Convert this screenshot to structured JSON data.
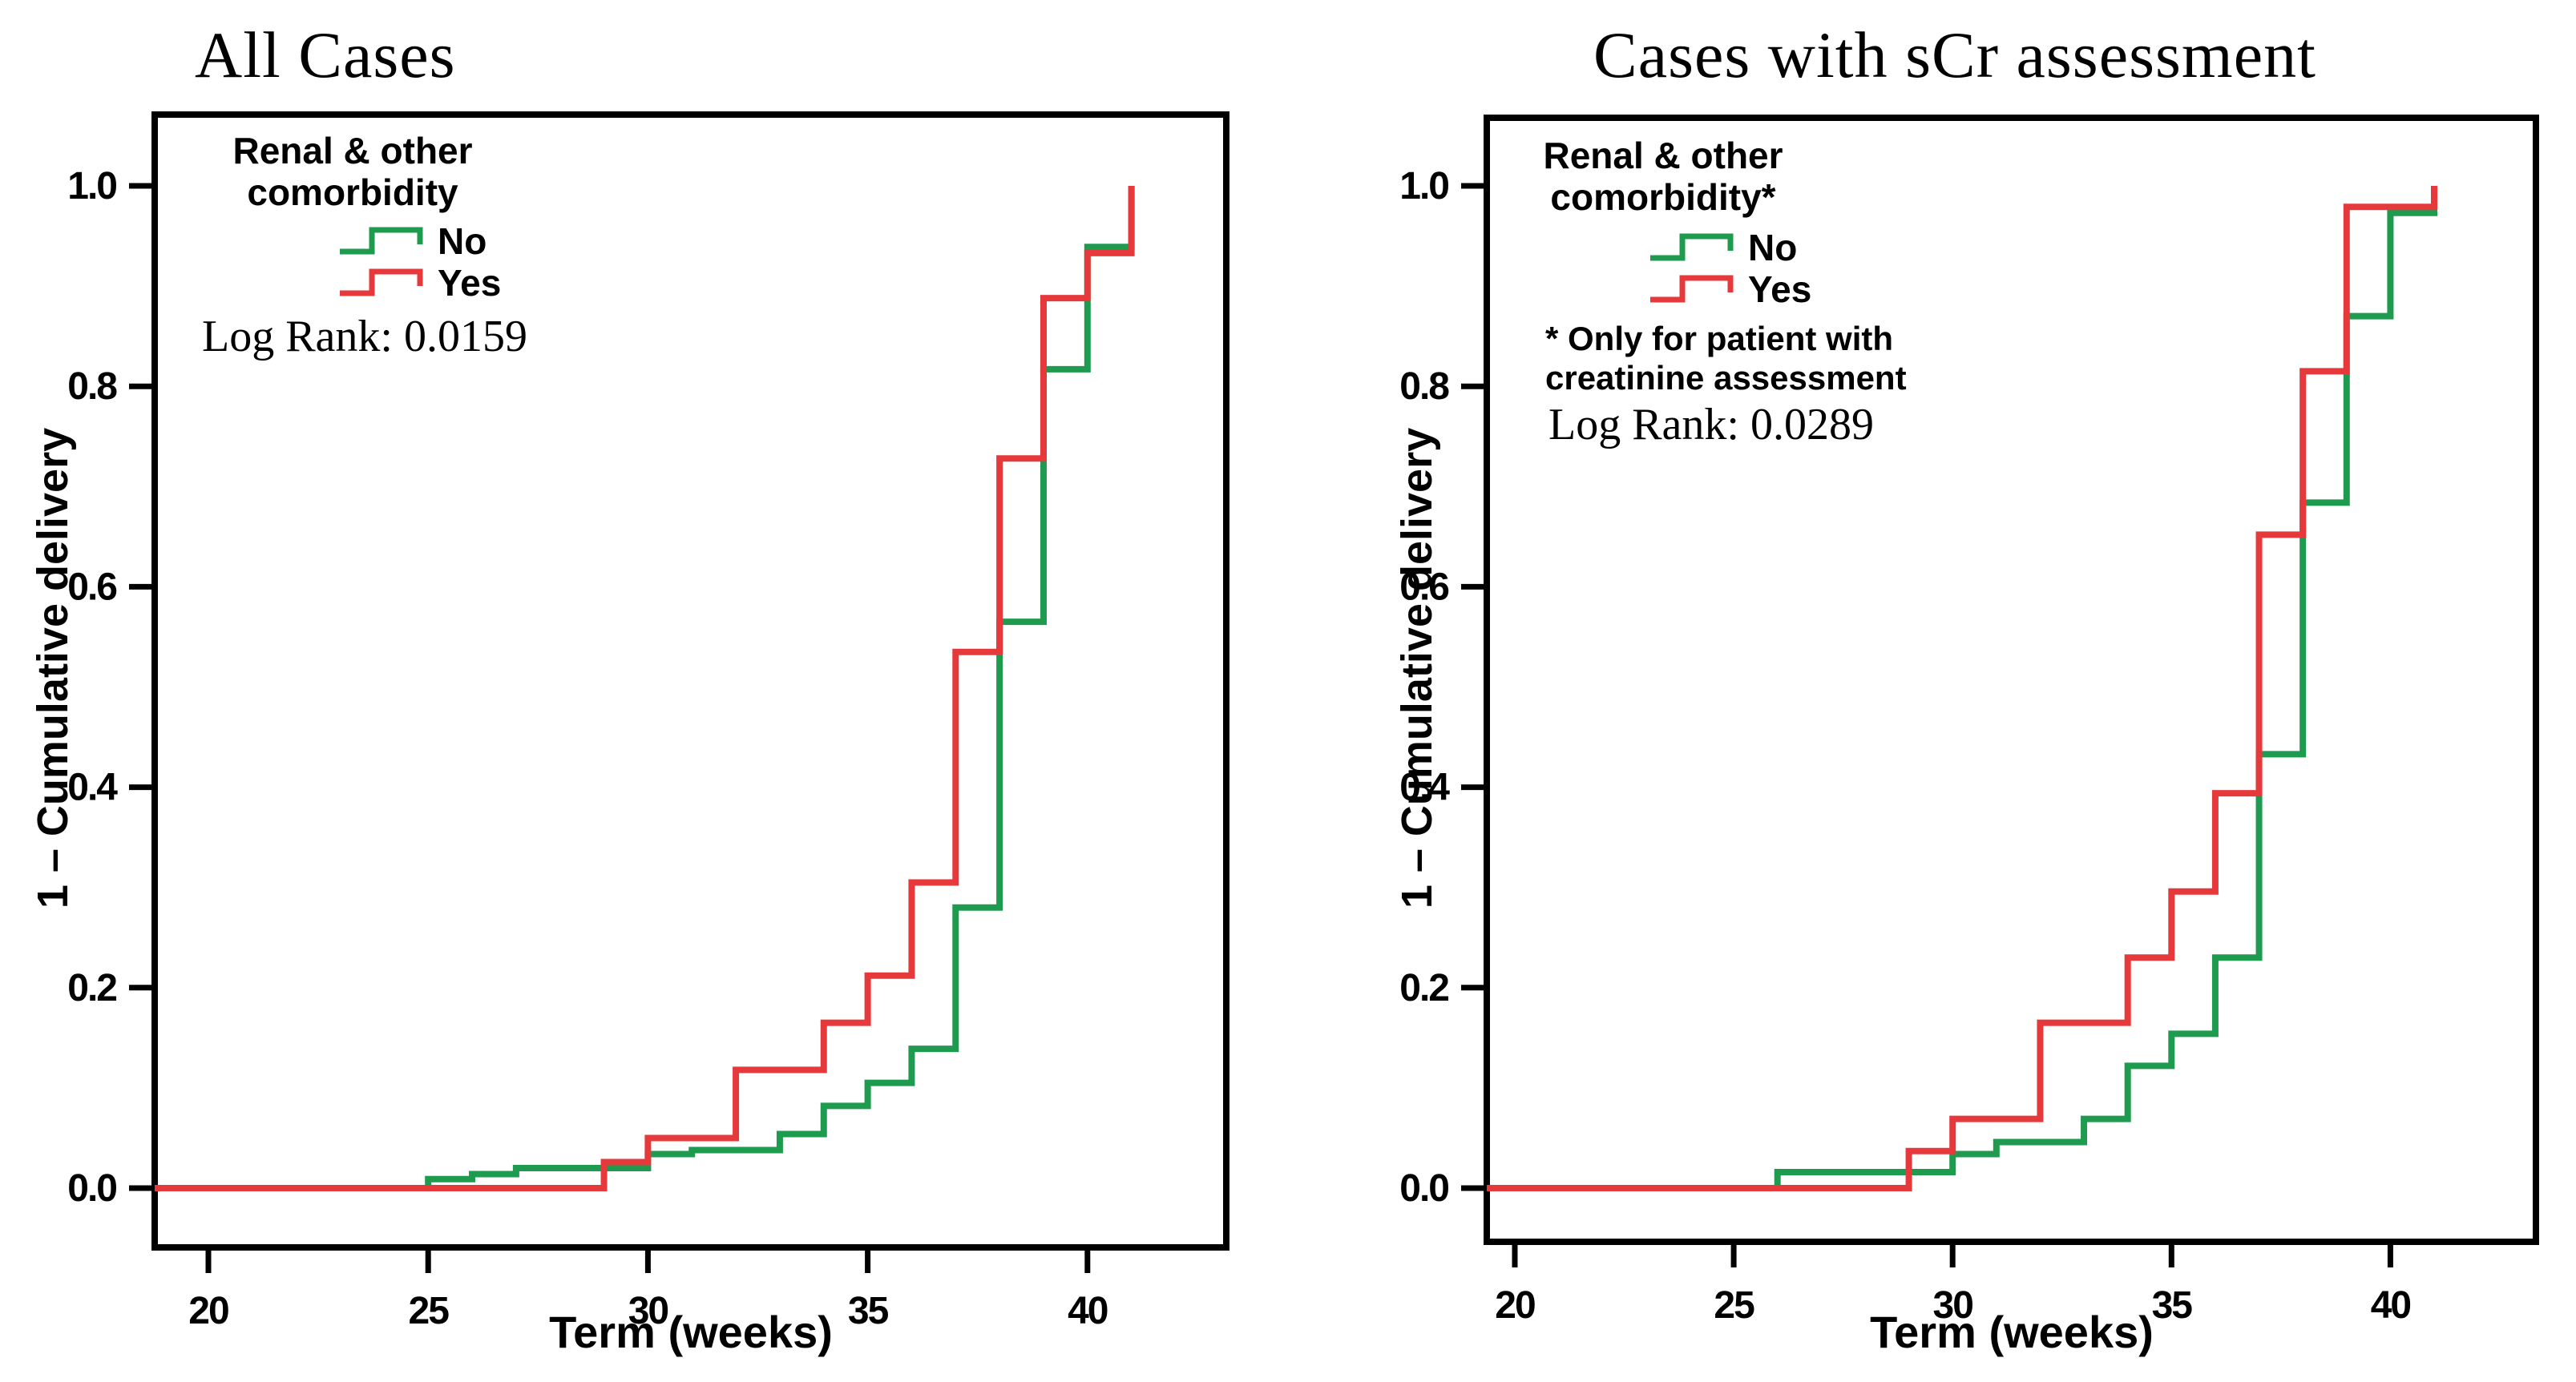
{
  "figure": {
    "background": "#ffffff",
    "text_color": "#000000",
    "axis_color": "#000000"
  },
  "chart_data": [
    {
      "type": "line",
      "subtype": "kaplan-meier-step",
      "title": "All Cases",
      "xlabel": "Term (weeks)",
      "ylabel": "1 – Cumulative delivery",
      "xlim": [
        18.8,
        43.2
      ],
      "ylim": [
        0.0,
        1.0
      ],
      "x_ticks": [
        20,
        25,
        30,
        35,
        40
      ],
      "y_ticks": [
        0.0,
        0.2,
        0.4,
        0.6,
        0.8,
        1.0
      ],
      "grid": false,
      "legend_position": "upper-left-inside",
      "legend_title_lines": [
        "Renal & other",
        "comorbidity"
      ],
      "annotation": "Log Rank: 0.0159",
      "footnote_lines": [],
      "series": [
        {
          "name": "No",
          "color": "#1E9B4E",
          "start_value": 0.0,
          "steps": [
            [
              25,
              0.009
            ],
            [
              26,
              0.014
            ],
            [
              27,
              0.02
            ],
            [
              30,
              0.034
            ],
            [
              31,
              0.038
            ],
            [
              33,
              0.054
            ],
            [
              34,
              0.082
            ],
            [
              35,
              0.105
            ],
            [
              36,
              0.139
            ],
            [
              37,
              0.28
            ],
            [
              38,
              0.565
            ],
            [
              39,
              0.817
            ],
            [
              40,
              0.939
            ],
            [
              41,
              1.0
            ]
          ]
        },
        {
          "name": "Yes",
          "color": "#E6393B",
          "start_value": 0.0,
          "steps": [
            [
              29,
              0.026
            ],
            [
              30,
              0.05
            ],
            [
              32,
              0.118
            ],
            [
              34,
              0.165
            ],
            [
              35,
              0.212
            ],
            [
              36,
              0.305
            ],
            [
              37,
              0.535
            ],
            [
              38,
              0.728
            ],
            [
              39,
              0.888
            ],
            [
              40,
              0.933
            ],
            [
              41,
              1.0
            ]
          ]
        }
      ]
    },
    {
      "type": "line",
      "subtype": "kaplan-meier-step",
      "title": "Cases with sCr assessment",
      "xlabel": "Term (weeks)",
      "ylabel": "1 – Cumulative delivery",
      "xlim": [
        19.4,
        43.3
      ],
      "ylim": [
        0.0,
        1.0
      ],
      "x_ticks": [
        20,
        25,
        30,
        35,
        40
      ],
      "y_ticks": [
        0.0,
        0.2,
        0.4,
        0.6,
        0.8,
        1.0
      ],
      "grid": false,
      "legend_position": "upper-left-inside",
      "legend_title_lines": [
        "Renal & other",
        "comorbidity*"
      ],
      "annotation": "Log Rank: 0.0289",
      "footnote_lines": [
        "* Only for patient with",
        "creatinine assessment"
      ],
      "series": [
        {
          "name": "No",
          "color": "#1E9B4E",
          "start_value": 0.0,
          "steps": [
            [
              26,
              0.016
            ],
            [
              30,
              0.034
            ],
            [
              31,
              0.046
            ],
            [
              33,
              0.069
            ],
            [
              34,
              0.122
            ],
            [
              35,
              0.154
            ],
            [
              36,
              0.23
            ],
            [
              37,
              0.433
            ],
            [
              38,
              0.684
            ],
            [
              39,
              0.87
            ],
            [
              40,
              0.973
            ],
            [
              41,
              1.0
            ]
          ]
        },
        {
          "name": "Yes",
          "color": "#E6393B",
          "start_value": 0.0,
          "steps": [
            [
              29,
              0.037
            ],
            [
              30,
              0.069
            ],
            [
              32,
              0.165
            ],
            [
              34,
              0.23
            ],
            [
              35,
              0.296
            ],
            [
              36,
              0.394
            ],
            [
              37,
              0.652
            ],
            [
              38,
              0.815
            ],
            [
              39,
              0.979
            ],
            [
              41,
              1.0
            ]
          ]
        }
      ]
    }
  ]
}
